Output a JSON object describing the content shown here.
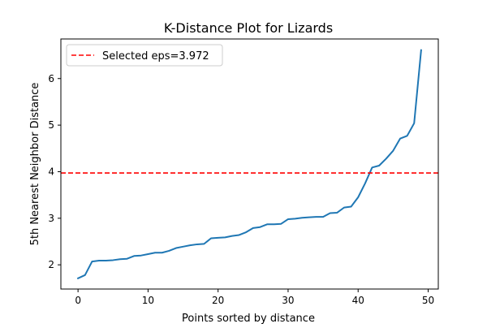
{
  "chart_data": {
    "type": "line",
    "title": "K-Distance Plot for Lizards",
    "xlabel": "Points sorted by distance",
    "ylabel": "5th Nearest Neighbor Distance",
    "xlim": [
      -2.45,
      51.45
    ],
    "ylim": [
      1.48,
      6.85
    ],
    "xticks": [
      0,
      10,
      20,
      30,
      40,
      50
    ],
    "yticks": [
      2,
      3,
      4,
      5,
      6
    ],
    "grid": false,
    "legend_position": "top-left",
    "series": [
      {
        "color": "#1f77b4",
        "x": [
          0,
          1,
          2,
          3,
          4,
          5,
          6,
          7,
          8,
          9,
          10,
          11,
          12,
          13,
          14,
          15,
          16,
          17,
          18,
          19,
          20,
          21,
          22,
          23,
          24,
          25,
          26,
          27,
          28,
          29,
          30,
          31,
          32,
          33,
          34,
          35,
          36,
          37,
          38,
          39,
          40,
          41,
          42,
          43,
          44,
          45,
          46,
          47,
          48,
          49
        ],
        "values": [
          1.71,
          1.78,
          2.07,
          2.09,
          2.09,
          2.1,
          2.12,
          2.13,
          2.19,
          2.2,
          2.23,
          2.26,
          2.26,
          2.3,
          2.36,
          2.39,
          2.42,
          2.44,
          2.45,
          2.57,
          2.58,
          2.59,
          2.62,
          2.64,
          2.7,
          2.79,
          2.81,
          2.87,
          2.87,
          2.88,
          2.98,
          2.99,
          3.01,
          3.02,
          3.03,
          3.03,
          3.11,
          3.12,
          3.23,
          3.25,
          3.45,
          3.75,
          4.09,
          4.13,
          4.28,
          4.45,
          4.71,
          4.77,
          5.04,
          6.61
        ]
      }
    ],
    "reference_line": {
      "orientation": "horizontal",
      "value": 3.972,
      "label": "Selected eps=3.972",
      "color": "#ff0000",
      "dash": "dashed"
    }
  }
}
